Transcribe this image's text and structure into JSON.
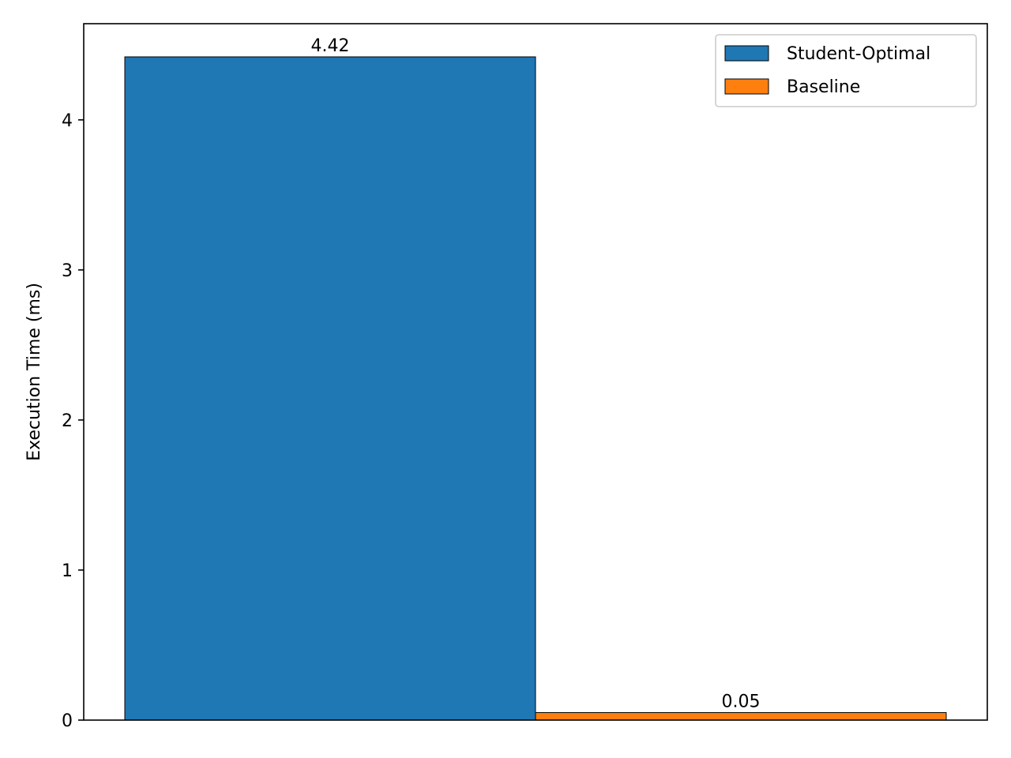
{
  "chart_data": {
    "type": "bar",
    "title": "",
    "xlabel": "",
    "ylabel": "Execution Time (ms)",
    "ylim": [
      0,
      4.641
    ],
    "yticks": [
      0,
      1,
      2,
      3,
      4
    ],
    "grid": false,
    "legend_position": "top-right",
    "series": [
      {
        "name": "Student-Optimal",
        "value": 4.42,
        "label": "4.42",
        "color": "#1f77b4"
      },
      {
        "name": "Baseline",
        "value": 0.05,
        "label": "0.05",
        "color": "#ff7f0e"
      }
    ]
  }
}
